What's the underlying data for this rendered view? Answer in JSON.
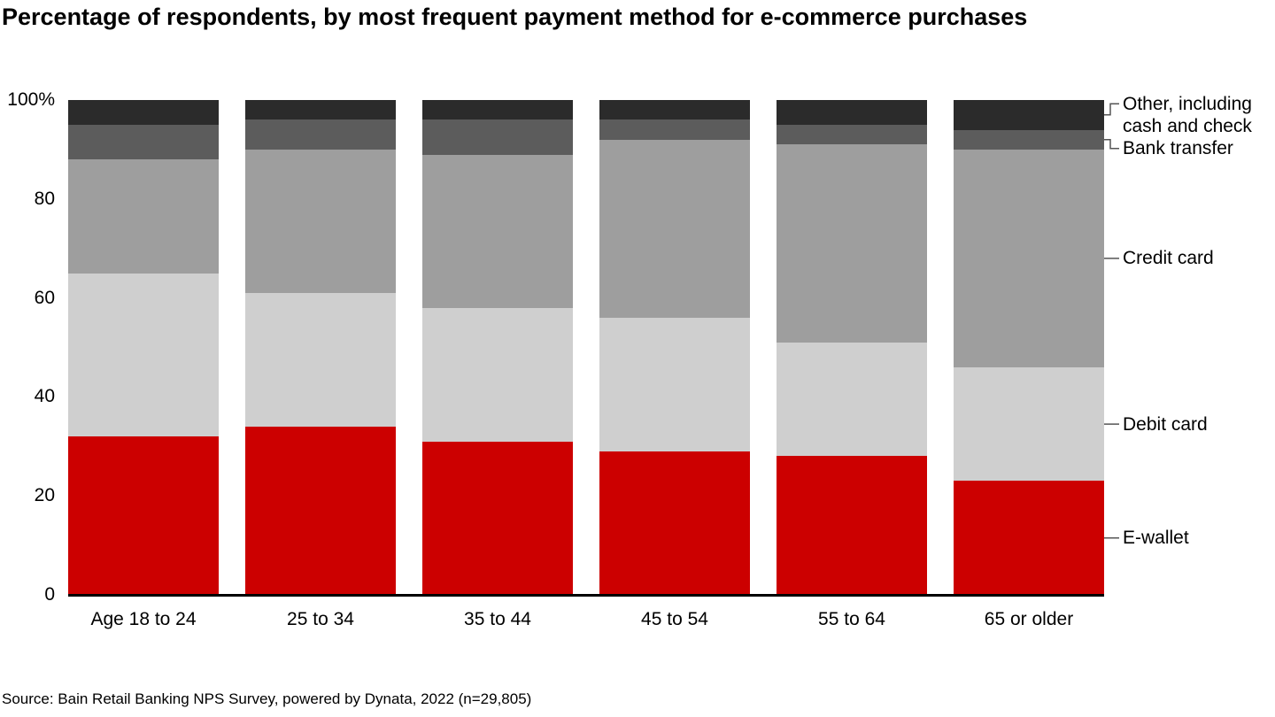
{
  "title": "Percentage of respondents, by most frequent payment method for e-commerce purchases",
  "source": "Source: Bain Retail Banking NPS Survey, powered by Dynata, 2022 (n=29,805)",
  "chart_data": {
    "type": "bar",
    "stacked": true,
    "unit": "percent",
    "title": "Percentage of respondents, by most frequent payment method for e-commerce purchases",
    "xlabel": "",
    "ylabel": "",
    "ylim": [
      0,
      100
    ],
    "grid": false,
    "legend_position": "right-of-bars",
    "categories": [
      "Age 18 to 24",
      "25 to 34",
      "35 to 44",
      "45 to 54",
      "55 to 64",
      "65 or older"
    ],
    "y_ticks": [
      "100%",
      "80",
      "60",
      "40",
      "20",
      "0"
    ],
    "y_tick_values": [
      100,
      80,
      60,
      40,
      20,
      0
    ],
    "series": [
      {
        "name": "E-wallet",
        "label": "E-wallet",
        "color": "#cc0000",
        "connector": "dash",
        "label_dy": 0,
        "values": [
          32,
          34,
          31,
          29,
          28,
          23
        ]
      },
      {
        "name": "Debit card",
        "label": "Debit card",
        "color": "#cfcfcf",
        "connector": "dash",
        "label_dy": 0,
        "values": [
          33,
          27,
          27,
          27,
          23,
          23
        ]
      },
      {
        "name": "Credit card",
        "label": "Credit card",
        "color": "#9e9e9e",
        "connector": "dash",
        "label_dy": 0,
        "values": [
          23,
          29,
          31,
          36,
          40,
          44
        ]
      },
      {
        "name": "Bank transfer",
        "label": "Bank transfer",
        "color": "#5c5c5c",
        "connector": "elbow",
        "label_dy": 10,
        "values": [
          7,
          6,
          7,
          4,
          4,
          4
        ]
      },
      {
        "name": "Other, including cash and check",
        "label": "Other, including\ncash and check",
        "color": "#2b2b2b",
        "connector": "elbow",
        "label_dy": 0,
        "values": [
          5,
          4,
          4,
          4,
          5,
          6
        ]
      }
    ]
  }
}
